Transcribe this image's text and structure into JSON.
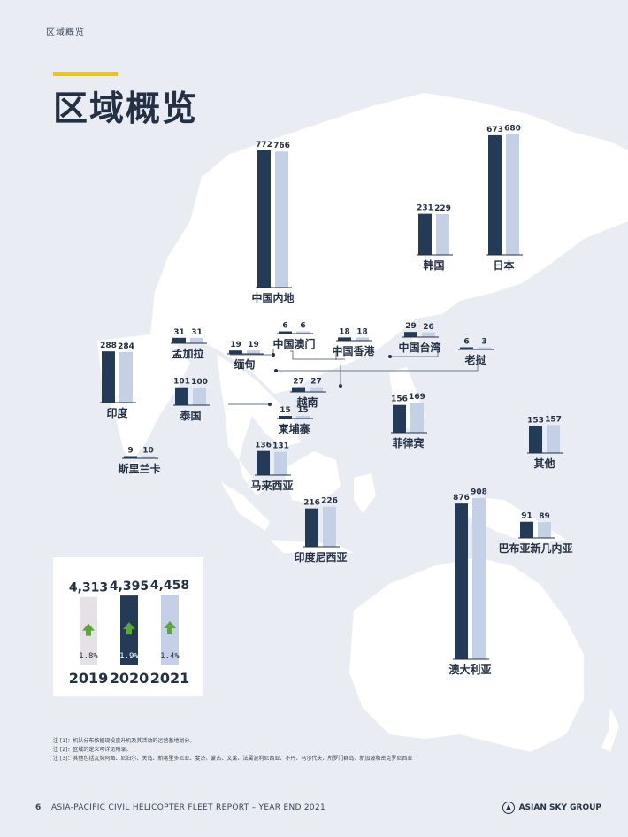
{
  "header": {
    "section_label": "区域概览",
    "title": "区域概览"
  },
  "colors": {
    "dark_bar": "#243b57",
    "light_bar": "#c3d0e6",
    "accent": "#f2c500",
    "arrow": "#5aa637",
    "background": "#e9edf3",
    "land": "#ffffff"
  },
  "chart_data": {
    "type": "bar",
    "categories": [
      "中国内地",
      "日本",
      "韩国",
      "中国澳门",
      "中国香港",
      "中国台湾",
      "老挝",
      "孟加拉",
      "缅甸",
      "印度",
      "泰国",
      "越南",
      "柬埔寨",
      "菲律宾",
      "其他",
      "斯里兰卡",
      "马来西亚",
      "印度尼西亚",
      "澳大利亚",
      "巴布亚新几内亚"
    ],
    "series": [
      {
        "values": [
          772,
          673,
          231,
          6,
          18,
          29,
          6,
          31,
          19,
          288,
          101,
          27,
          15,
          156,
          153,
          9,
          136,
          216,
          876,
          91
        ]
      },
      {
        "values": [
          766,
          680,
          229,
          6,
          18,
          26,
          3,
          31,
          19,
          284,
          100,
          27,
          15,
          169,
          157,
          10,
          131,
          226,
          908,
          89
        ]
      }
    ],
    "totals": {
      "years": [
        "2019",
        "2020",
        "2021"
      ],
      "values": [
        "4,313",
        "4,395",
        "4,458"
      ],
      "growth": [
        "1.8%",
        "1.9%",
        "1.4%"
      ],
      "numbers": [
        4313,
        4395,
        4458
      ]
    }
  },
  "notes": [
    "注 [1]：机队分布依据现役直升机及其活动的运营基地划分。",
    "注 [2]：区域的定义可详见附录。",
    "注 [3]：其他包括瓦努阿图、尼泊尔、关岛、新喀里多尼亚、斐济、蒙古、文莱、法属波利尼西亚、不丹、马尔代夫、所罗门群岛、新加坡和密克罗尼西亚"
  ],
  "footer": {
    "page_number": "6",
    "report_title": "ASIA-PACIFIC CIVIL HELICOPTER FLEET REPORT – YEAR END 2021",
    "brand": "ASIAN SKY GROUP"
  }
}
